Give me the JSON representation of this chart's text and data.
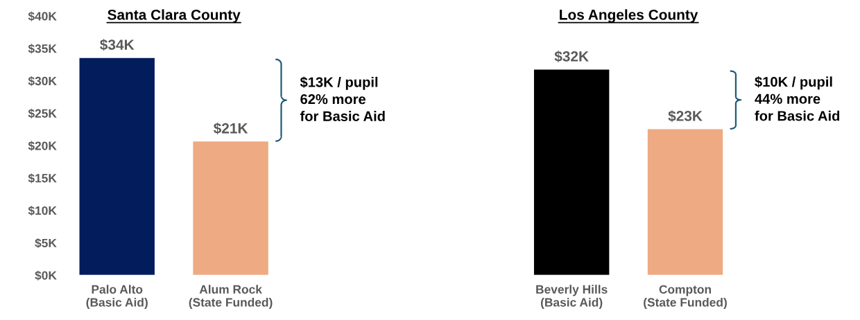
{
  "chart_data": {
    "type": "bar",
    "categories": [
      "Palo Alto\n(Basic Aid)",
      "Alum Rock\n(State Funded)",
      null,
      null,
      "Beverly Hills\n(Basic Aid)",
      "Compton\n(State Funded)"
    ],
    "values": [
      33.6,
      20.7,
      null,
      null,
      31.8,
      22.6
    ],
    "colors": [
      "#021c5c",
      "#eeaa82",
      "#eeaa82",
      "#eeaa82",
      "#000000",
      "#eeaa82"
    ],
    "value_labels": [
      "$34K",
      "$21K",
      null,
      null,
      "$32K",
      "$23K"
    ],
    "ylim": [
      0,
      40
    ],
    "yticks": [
      {
        "value": 0,
        "label": "$0K"
      },
      {
        "value": 5,
        "label": "$5K"
      },
      {
        "value": 10,
        "label": "$10K"
      },
      {
        "value": 15,
        "label": "$15K"
      },
      {
        "value": 20,
        "label": "$20K"
      },
      {
        "value": 25,
        "label": "$25K"
      },
      {
        "value": 30,
        "label": "$30K"
      },
      {
        "value": 35,
        "label": "$35K"
      },
      {
        "value": 40,
        "label": "$40K"
      }
    ],
    "grid": false,
    "legend": false,
    "annotations": [
      "Santa Clara County",
      "Los Angeles County",
      "$13K / pupil\n62% more\nfor Basic Aid",
      "$10K / pupil\n44% more\nfor Basic Aid"
    ]
  }
}
